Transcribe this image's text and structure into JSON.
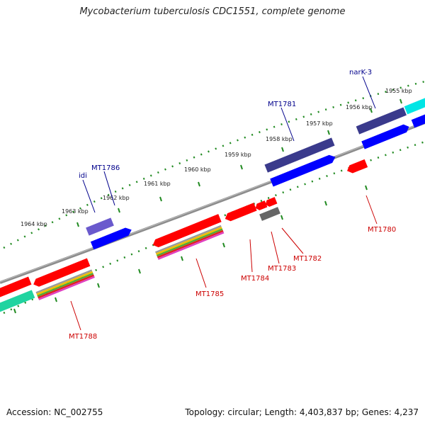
{
  "title": "Mycobacterium tuberculosis CDC1551, complete genome",
  "accession": "Accession: NC_002755",
  "topology": "Topology: circular; Length: 4,403,837 bp; Genes: 4,237",
  "ticks": [
    "1955 kbp",
    "1956 kbp",
    "1957 kbp",
    "1958 kbp",
    "1959 kbp",
    "1960 kbp",
    "1961 kbp",
    "1962 kbp",
    "1963 kbp",
    "1964 kbp"
  ],
  "genes_top": [
    "narK-3",
    "MT1781",
    "MT1786",
    "idi"
  ],
  "genes_bottom": [
    "MT1780",
    "MT1782",
    "MT1783",
    "MT1784",
    "MT1785",
    "MT1788"
  ],
  "colors": {
    "blue_label": "#00008b",
    "red_label": "#cc0000",
    "gene_red": "#ff0000",
    "gene_blue": "#0000ff",
    "gene_navy": "#3a3a8c",
    "gene_purple": "#6a5acd",
    "gene_cyan": "#00e5e5",
    "gene_teal": "#20d4a0",
    "gene_gray": "#666666",
    "backbone": "#8c8c8c",
    "tick_dots": "#228b22"
  }
}
